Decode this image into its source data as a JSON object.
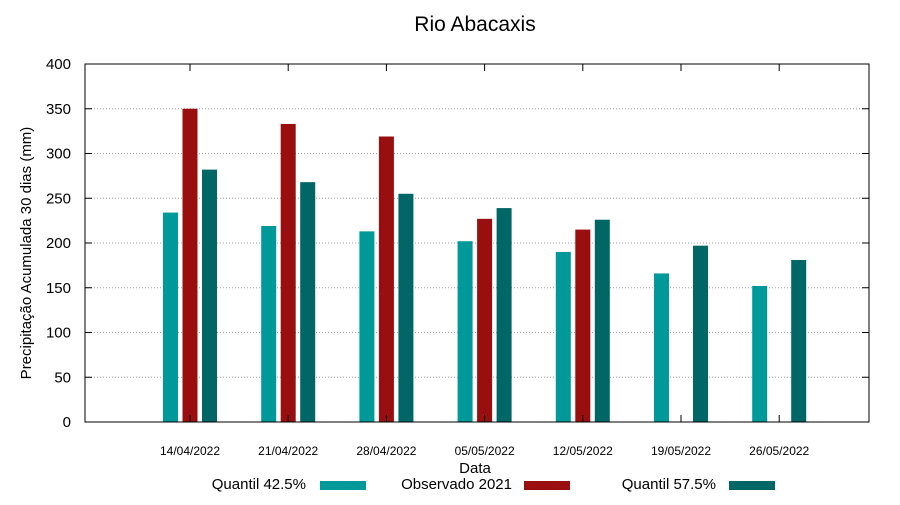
{
  "chart_data": {
    "type": "bar",
    "title": "Rio Abacaxis",
    "xlabel": "Data",
    "ylabel": "Precipitação Acumulada 30 dias (mm)",
    "ylim": [
      0,
      400
    ],
    "yticks": [
      0,
      50,
      100,
      150,
      200,
      250,
      300,
      350,
      400
    ],
    "grid": true,
    "legend_position": "bottom",
    "categories": [
      "14/04/2022",
      "21/04/2022",
      "28/04/2022",
      "05/05/2022",
      "12/05/2022",
      "19/05/2022",
      "26/05/2022"
    ],
    "series": [
      {
        "name": "Quantil 42.5%",
        "color": "#009999",
        "values": [
          234,
          219,
          213,
          202,
          190,
          166,
          152
        ]
      },
      {
        "name": "Observado 2021",
        "color": "#990f0f",
        "values": [
          350,
          333,
          319,
          227,
          215,
          null,
          null
        ]
      },
      {
        "name": "Quantil 57.5%",
        "color": "#006666",
        "values": [
          282,
          268,
          255,
          239,
          226,
          197,
          181
        ]
      }
    ]
  }
}
